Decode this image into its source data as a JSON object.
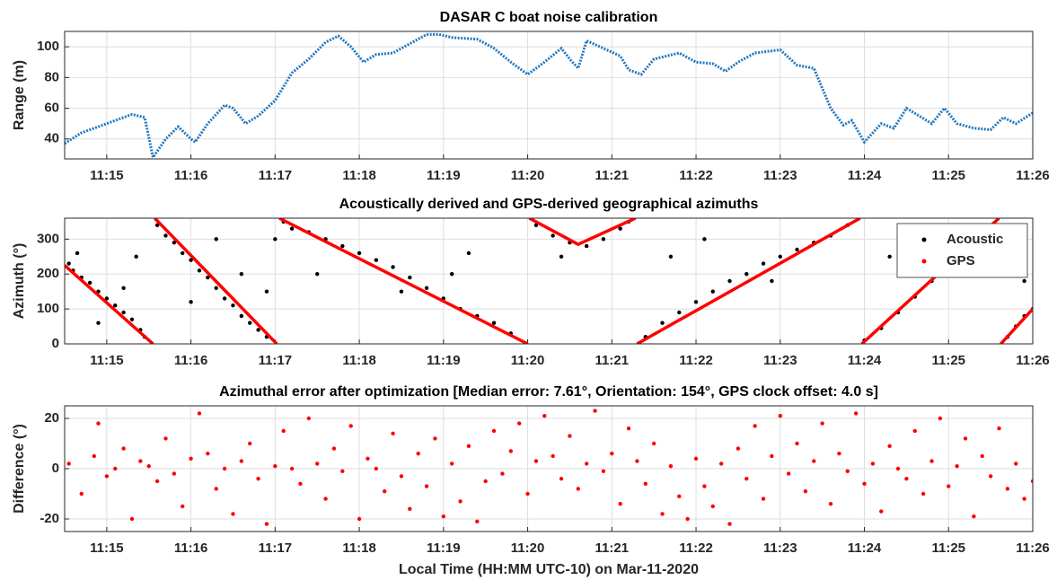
{
  "chart_data": [
    {
      "type": "line",
      "title": "DASAR C boat noise calibration",
      "ylabel": "Range (m)",
      "xlim": [
        14.5,
        26
      ],
      "xticks": [
        {
          "value": 15,
          "label": "11:15"
        },
        {
          "value": 16,
          "label": "11:16"
        },
        {
          "value": 17,
          "label": "11:17"
        },
        {
          "value": 18,
          "label": "11:18"
        },
        {
          "value": 19,
          "label": "11:19"
        },
        {
          "value": 20,
          "label": "11:20"
        },
        {
          "value": 21,
          "label": "11:21"
        },
        {
          "value": 22,
          "label": "11:22"
        },
        {
          "value": 23,
          "label": "11:23"
        },
        {
          "value": 24,
          "label": "11:24"
        },
        {
          "value": 25,
          "label": "11:25"
        },
        {
          "value": 26,
          "label": "11:26"
        }
      ],
      "ylim": [
        27,
        110
      ],
      "yticks": [
        40,
        60,
        80,
        100
      ],
      "grid": true,
      "series": [
        {
          "mode": "markers-line",
          "color": "#1f77c0",
          "x": [
            14.5,
            14.7,
            14.9,
            15.1,
            15.3,
            15.45,
            15.55,
            15.7,
            15.85,
            16.0,
            16.05,
            16.2,
            16.4,
            16.5,
            16.65,
            16.8,
            17.0,
            17.2,
            17.4,
            17.6,
            17.75,
            17.9,
            18.05,
            18.2,
            18.4,
            18.6,
            18.8,
            18.95,
            19.1,
            19.4,
            19.6,
            19.8,
            20.0,
            20.2,
            20.4,
            20.5,
            20.6,
            20.7,
            20.9,
            21.1,
            21.2,
            21.35,
            21.5,
            21.8,
            22.0,
            22.2,
            22.35,
            22.5,
            22.7,
            23.0,
            23.2,
            23.4,
            23.6,
            23.75,
            23.85,
            24.0,
            24.2,
            24.35,
            24.5,
            24.65,
            24.8,
            24.95,
            25.1,
            25.3,
            25.5,
            25.65,
            25.8,
            26.0
          ],
          "values": [
            37,
            44,
            48,
            52,
            56,
            54,
            28,
            40,
            48,
            40,
            38,
            50,
            62,
            60,
            50,
            55,
            65,
            83,
            92,
            103,
            107,
            100,
            90,
            95,
            96,
            102,
            108,
            108,
            106,
            105,
            99,
            90,
            82,
            90,
            99,
            92,
            86,
            104,
            99,
            94,
            85,
            82,
            92,
            96,
            90,
            89,
            84,
            90,
            96,
            98,
            88,
            86,
            60,
            49,
            52,
            38,
            50,
            47,
            60,
            55,
            50,
            60,
            50,
            47,
            46,
            54,
            50,
            57
          ]
        }
      ]
    },
    {
      "type": "scatter",
      "title": "Acoustically derived and GPS-derived geographical azimuths",
      "ylabel": "Azimuth (°)",
      "xlim": [
        14.5,
        26
      ],
      "xticks": [
        {
          "value": 15,
          "label": "11:15"
        },
        {
          "value": 16,
          "label": "11:16"
        },
        {
          "value": 17,
          "label": "11:17"
        },
        {
          "value": 18,
          "label": "11:18"
        },
        {
          "value": 19,
          "label": "11:19"
        },
        {
          "value": 20,
          "label": "11:20"
        },
        {
          "value": 21,
          "label": "11:21"
        },
        {
          "value": 22,
          "label": "11:22"
        },
        {
          "value": 23,
          "label": "11:23"
        },
        {
          "value": 24,
          "label": "11:24"
        },
        {
          "value": 25,
          "label": "11:25"
        },
        {
          "value": 26,
          "label": "11:26"
        }
      ],
      "ylim": [
        0,
        360
      ],
      "yticks": [
        0,
        100,
        200,
        300
      ],
      "grid": true,
      "legend": "upper right",
      "series": [
        {
          "name": "Acoustic",
          "mode": "markers",
          "color": "#000000",
          "x": [
            14.55,
            14.6,
            14.7,
            14.8,
            14.9,
            15.0,
            15.1,
            15.2,
            15.3,
            15.4,
            15.45,
            14.65,
            14.9,
            15.2,
            15.35,
            15.6,
            15.7,
            15.8,
            15.9,
            16.0,
            16.1,
            16.2,
            16.3,
            16.4,
            16.5,
            16.6,
            16.7,
            16.8,
            16.9,
            16.0,
            16.3,
            16.6,
            16.9,
            17.0,
            17.1,
            17.2,
            17.4,
            17.6,
            17.8,
            18.0,
            18.2,
            18.4,
            18.6,
            18.8,
            19.0,
            19.2,
            19.4,
            19.6,
            19.8,
            17.5,
            18.5,
            19.1,
            19.3,
            20.1,
            20.3,
            20.5,
            20.7,
            20.9,
            21.1,
            21.2,
            20.4,
            21.4,
            21.6,
            21.8,
            22.0,
            22.2,
            22.4,
            22.6,
            22.8,
            23.0,
            23.2,
            23.4,
            23.6,
            23.8,
            22.1,
            21.7,
            22.9,
            24.0,
            24.2,
            24.4,
            24.6,
            24.8,
            25.0,
            25.2,
            24.3,
            25.7,
            25.8,
            25.9,
            26.0,
            25.9
          ],
          "values": [
            230,
            210,
            190,
            175,
            150,
            130,
            110,
            90,
            70,
            40,
            20,
            260,
            60,
            160,
            250,
            340,
            310,
            290,
            260,
            240,
            210,
            190,
            160,
            130,
            110,
            80,
            60,
            40,
            20,
            120,
            300,
            200,
            150,
            300,
            350,
            330,
            320,
            300,
            280,
            260,
            240,
            220,
            190,
            160,
            130,
            100,
            80,
            60,
            30,
            200,
            150,
            200,
            260,
            340,
            310,
            290,
            280,
            300,
            330,
            350,
            250,
            20,
            60,
            90,
            120,
            150,
            180,
            200,
            230,
            250,
            270,
            290,
            310,
            340,
            300,
            250,
            180,
            10,
            45,
            90,
            135,
            180,
            225,
            270,
            250,
            20,
            50,
            80,
            100,
            180
          ]
        },
        {
          "name": "GPS",
          "mode": "line",
          "color": "#ff0000",
          "x": [
            14.5,
            15.55,
            15.56,
            15.57,
            17.02,
            17.03,
            17.05,
            20.0,
            20.01,
            20.02,
            20.6,
            21.28,
            21.29,
            21.3,
            23.95,
            23.96,
            23.97,
            25.6,
            25.61,
            25.62,
            26.0
          ],
          "values": [
            225,
            0,
            null,
            360,
            0,
            null,
            360,
            0,
            null,
            360,
            285,
            360,
            null,
            0,
            360,
            null,
            0,
            360,
            null,
            0,
            100
          ]
        }
      ]
    },
    {
      "type": "scatter",
      "title": "Azimuthal error after optimization [Median error: 7.61°, Orientation: 154°, GPS clock offset: 4.0 s]",
      "ylabel": "Difference (°)",
      "xlabel": "Local Time (HH:MM UTC-10) on Mar-11-2020",
      "xlim": [
        14.5,
        26
      ],
      "xticks": [
        {
          "value": 15,
          "label": "11:15"
        },
        {
          "value": 16,
          "label": "11:16"
        },
        {
          "value": 17,
          "label": "11:17"
        },
        {
          "value": 18,
          "label": "11:18"
        },
        {
          "value": 19,
          "label": "11:19"
        },
        {
          "value": 20,
          "label": "11:20"
        },
        {
          "value": 21,
          "label": "11:21"
        },
        {
          "value": 22,
          "label": "11:22"
        },
        {
          "value": 23,
          "label": "11:23"
        },
        {
          "value": 24,
          "label": "11:24"
        },
        {
          "value": 25,
          "label": "11:25"
        },
        {
          "value": 26,
          "label": "11:26"
        }
      ],
      "ylim": [
        -25,
        25
      ],
      "yticks": [
        -20,
        0,
        20
      ],
      "grid": true,
      "series": [
        {
          "mode": "markers",
          "color": "#ff0000",
          "x": [
            14.55,
            14.7,
            14.85,
            14.9,
            15.0,
            15.1,
            15.2,
            15.3,
            15.4,
            15.5,
            15.6,
            15.7,
            15.8,
            15.9,
            16.0,
            16.1,
            16.2,
            16.3,
            16.4,
            16.5,
            16.6,
            16.7,
            16.8,
            16.9,
            17.0,
            17.1,
            17.2,
            17.3,
            17.4,
            17.5,
            17.6,
            17.7,
            17.8,
            17.9,
            18.0,
            18.1,
            18.2,
            18.3,
            18.4,
            18.5,
            18.6,
            18.7,
            18.8,
            18.9,
            19.0,
            19.1,
            19.2,
            19.3,
            19.4,
            19.5,
            19.6,
            19.7,
            19.8,
            19.9,
            20.0,
            20.1,
            20.2,
            20.3,
            20.4,
            20.5,
            20.6,
            20.7,
            20.8,
            20.9,
            21.0,
            21.1,
            21.2,
            21.3,
            21.4,
            21.5,
            21.6,
            21.7,
            21.8,
            21.9,
            22.0,
            22.1,
            22.2,
            22.3,
            22.4,
            22.5,
            22.6,
            22.7,
            22.8,
            22.9,
            23.0,
            23.1,
            23.2,
            23.3,
            23.4,
            23.5,
            23.6,
            23.7,
            23.8,
            23.9,
            24.0,
            24.1,
            24.2,
            24.3,
            24.4,
            24.5,
            24.6,
            24.7,
            24.8,
            24.9,
            25.0,
            25.1,
            25.2,
            25.3,
            25.4,
            25.5,
            25.6,
            25.7,
            25.8,
            25.9,
            26.0
          ],
          "values": [
            2,
            -10,
            5,
            18,
            -3,
            0,
            8,
            -20,
            3,
            1,
            -5,
            12,
            -2,
            -15,
            4,
            22,
            6,
            -8,
            0,
            -18,
            3,
            10,
            -4,
            -22,
            1,
            15,
            0,
            -6,
            20,
            2,
            -12,
            8,
            -1,
            17,
            -20,
            4,
            0,
            -9,
            14,
            -3,
            -16,
            6,
            -7,
            12,
            -19,
            2,
            -13,
            9,
            -21,
            -5,
            15,
            -2,
            7,
            18,
            -10,
            3,
            21,
            5,
            -4,
            13,
            -8,
            2,
            23,
            -1,
            6,
            -14,
            16,
            3,
            -6,
            10,
            -18,
            1,
            -11,
            -20,
            4,
            -7,
            -15,
            2,
            -22,
            8,
            -4,
            17,
            -12,
            5,
            21,
            -2,
            10,
            -9,
            3,
            18,
            -14,
            6,
            -1,
            22,
            -6,
            2,
            -17,
            9,
            0,
            -4,
            15,
            -10,
            3,
            20,
            -7,
            1,
            12,
            -19,
            5,
            -3,
            16,
            -8,
            2,
            -12,
            -5
          ]
        }
      ]
    }
  ]
}
